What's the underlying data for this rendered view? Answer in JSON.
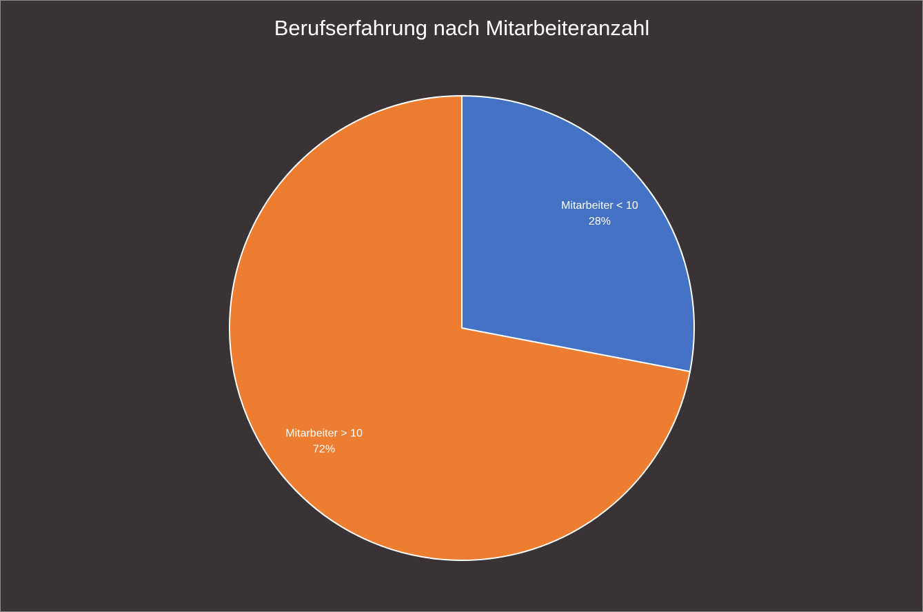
{
  "chart_data": {
    "type": "pie",
    "title": "Berufserfahrung nach Mitarbeiteranzahl",
    "categories": [
      "Mitarbeiter < 10",
      "Mitarbeiter > 10"
    ],
    "values": [
      28,
      72
    ],
    "value_labels": [
      "28%",
      "72%"
    ],
    "colors": [
      "#4472c4",
      "#ed7d31"
    ]
  }
}
